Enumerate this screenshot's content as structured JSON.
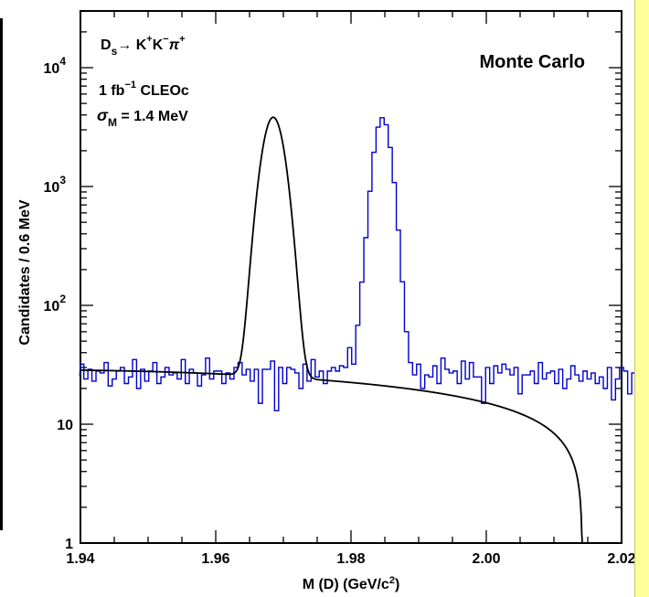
{
  "chart_data": {
    "type": "histogram",
    "yscale": "log",
    "xlim": [
      1.94,
      2.02
    ],
    "ylim": [
      1,
      30000
    ],
    "xlabel": "M (D) (GeV/c",
    "xlabel_sup": "2",
    "xlabel_end": ")",
    "ylabel": "Candidates / 0.6 MeV",
    "xticks": [
      {
        "value": 1.94,
        "label": "1.94"
      },
      {
        "value": 1.96,
        "label": "1.96"
      },
      {
        "value": 1.98,
        "label": "1.98"
      },
      {
        "value": 2.0,
        "label": "2.00"
      },
      {
        "value": 2.02,
        "label": "2.02"
      }
    ],
    "yticks": [
      {
        "value": 1,
        "base": "1",
        "exp": ""
      },
      {
        "value": 10,
        "base": "10",
        "exp": ""
      },
      {
        "value": 100,
        "base": "10",
        "exp": "2"
      },
      {
        "value": 1000,
        "base": "10",
        "exp": "3"
      },
      {
        "value": 10000,
        "base": "10",
        "exp": "4"
      }
    ],
    "annotation": {
      "line1": {
        "a": "D",
        "a_sub": "s",
        "arrow": "→ K",
        "sup1": "+",
        "b": "K",
        "sup2": "−",
        "c": "π",
        "sup3": "+"
      },
      "line2": {
        "a": "1 fb",
        "sup": "−1",
        "b": " CLEOc"
      },
      "line3": {
        "sigma": "σ",
        "sub": "M",
        "rest": " = 1.4 MeV"
      },
      "mc_label": "Monte Carlo",
      "mc_color": "#ff7f00"
    },
    "histogram": {
      "name": "MC candidates",
      "color": "#0000cc",
      "x_start": 1.9393,
      "bin_width": 0.0006,
      "counts": [
        26,
        32,
        24,
        29,
        23,
        28,
        27,
        33,
        21,
        24,
        28,
        30,
        22,
        25,
        35,
        20,
        29,
        23,
        28,
        33,
        22,
        25,
        30,
        26,
        27,
        24,
        35,
        22,
        29,
        27,
        21,
        26,
        36,
        24,
        28,
        28,
        22,
        27,
        24,
        30,
        33,
        26,
        29,
        23,
        29,
        15,
        29,
        29,
        34,
        13,
        30,
        22,
        30,
        29,
        27,
        20,
        32,
        23,
        35,
        25,
        28,
        22,
        28,
        30,
        28,
        31,
        30,
        44,
        32,
        68,
        157,
        371,
        913,
        1940,
        3160,
        3790,
        3310,
        2130,
        1080,
        430,
        158,
        60,
        33,
        26,
        32,
        20,
        26,
        25,
        31,
        22,
        36,
        29,
        27,
        28,
        22,
        34,
        24,
        33,
        25,
        25,
        15,
        30,
        22,
        31,
        27,
        32,
        29,
        26,
        30,
        18,
        26,
        26,
        28,
        22,
        33,
        24,
        27,
        28,
        22,
        29,
        20,
        24,
        31,
        26,
        23,
        28,
        24,
        27,
        22,
        25,
        20,
        30,
        16,
        24,
        30,
        28,
        18,
        27,
        17,
        23,
        16,
        27,
        14,
        26,
        11,
        24,
        10,
        18,
        9,
        11,
        5,
        3,
        1
      ]
    },
    "fit": {
      "name": "fit",
      "color": "#000000",
      "peak_mean": 1.9685,
      "peak_sigma": 0.0014,
      "peak_amplitude": 3800,
      "background_level": 28.5,
      "background_slope": -0.00095,
      "kinematic_endpoint": 2.0142
    }
  }
}
